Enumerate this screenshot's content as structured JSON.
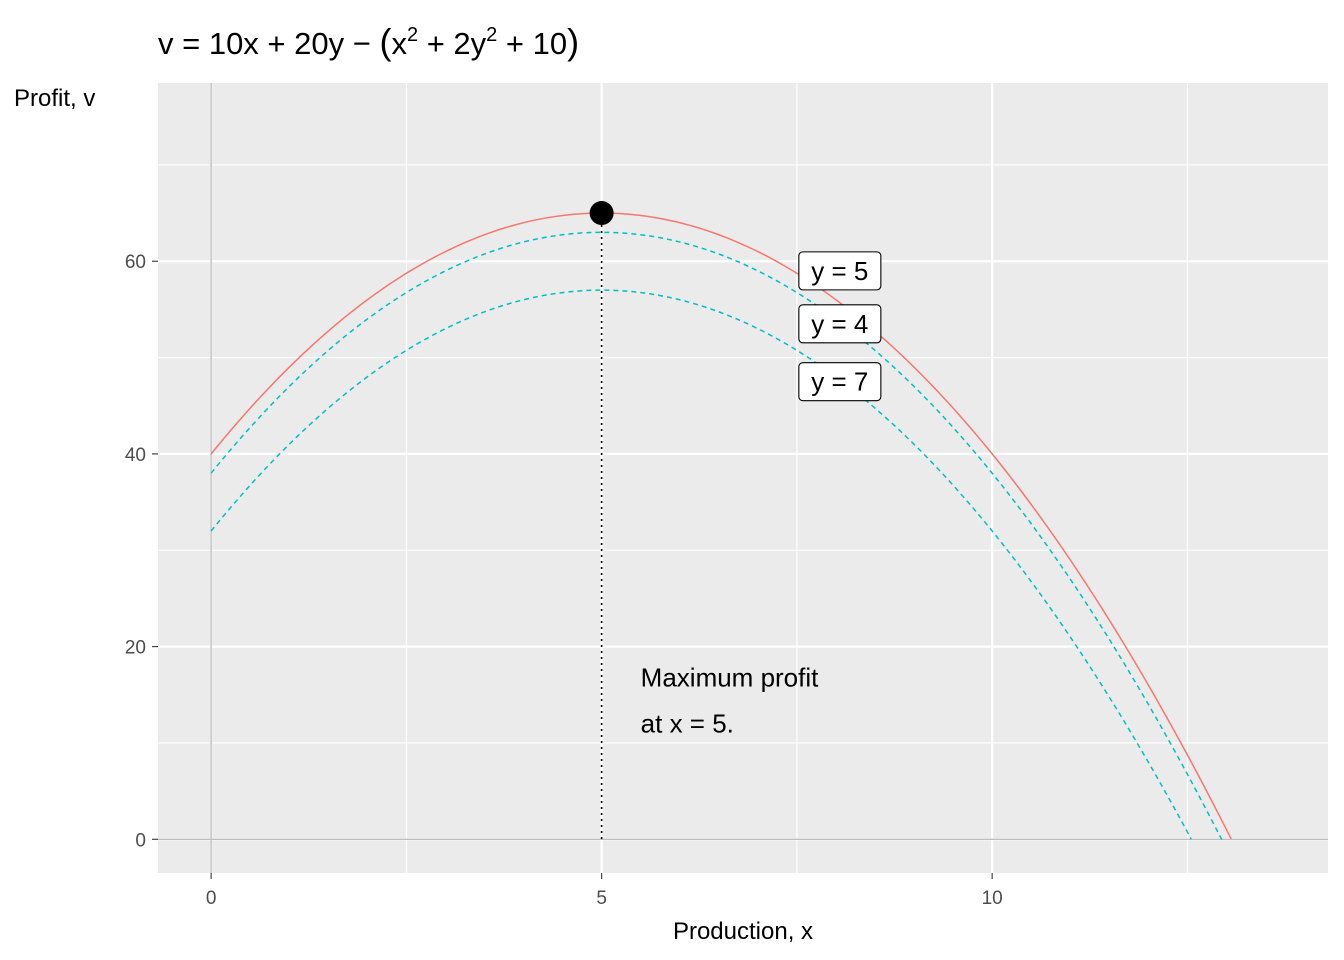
{
  "chart_data": {
    "type": "line",
    "title_parts": {
      "a": "v = 10x + 20y − ",
      "open": "(",
      "b": "x",
      "sup1": "2",
      "c": " + 2y",
      "sup2": "2",
      "d": " + 10",
      "close": ")"
    },
    "xlabel": "Production, x",
    "ylabel": "Profit, v",
    "xlim": [
      -0.68,
      14.3
    ],
    "ylim": [
      -3.5,
      78.5
    ],
    "x_ticks": [
      0,
      5,
      10
    ],
    "x_tick_labels": [
      "0",
      "5",
      "10"
    ],
    "y_ticks": [
      0,
      20,
      40,
      60
    ],
    "y_tick_labels": [
      "0",
      "20",
      "40",
      "60"
    ],
    "grid": true,
    "series": [
      {
        "y": 5,
        "label": "y = 5",
        "color": "#F8766D",
        "linetype": "solid",
        "x_range": [
          0,
          13.06
        ],
        "label_x": 8.05,
        "label_y": 59.0
      },
      {
        "y": 4,
        "label": "y = 4",
        "color": "#00BFC4",
        "linetype": "dashed",
        "x_range": [
          0,
          12.94
        ],
        "label_x": 8.05,
        "label_y": 53.5
      },
      {
        "y": 7,
        "label": "y = 7",
        "color": "#00BFC4",
        "linetype": "dashed",
        "x_range": [
          0,
          12.55
        ],
        "label_x": 8.05,
        "label_y": 47.5
      }
    ],
    "max_point": {
      "x": 5,
      "v": 65
    },
    "annotation": {
      "line1": "Maximum profit",
      "line2": "at x = 5.",
      "x": 5.5,
      "y1": 16.8,
      "y2": 12.0
    }
  }
}
